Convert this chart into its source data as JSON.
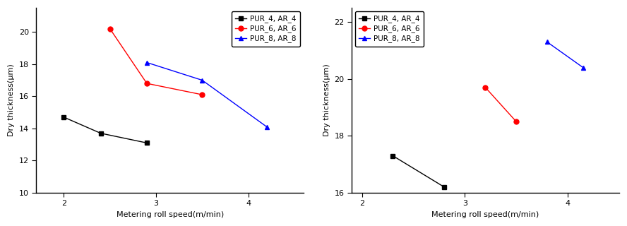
{
  "left": {
    "series": [
      {
        "label": "PUR_4, AR_4",
        "color": "black",
        "marker": "s",
        "x": [
          2.0,
          2.4,
          2.9
        ],
        "y": [
          14.7,
          13.7,
          13.1
        ]
      },
      {
        "label": "PUR_6, AR_6",
        "color": "red",
        "marker": "o",
        "x": [
          2.5,
          2.9,
          3.5
        ],
        "y": [
          20.2,
          16.8,
          16.1
        ]
      },
      {
        "label": "PUR_8, AR_8",
        "color": "blue",
        "marker": "^",
        "x": [
          2.9,
          3.5,
          4.2
        ],
        "y": [
          18.1,
          17.0,
          14.1
        ]
      }
    ],
    "xlabel": "Metering roll speed(m/min)",
    "ylabel": "Dry thickness(μm)",
    "xlim": [
      1.7,
      4.6
    ],
    "ylim": [
      10,
      21.5
    ],
    "yticks": [
      10,
      12,
      14,
      16,
      18,
      20
    ],
    "xticks": [
      2,
      3,
      4
    ]
  },
  "right": {
    "series": [
      {
        "label": "PUR_4, AR_4",
        "color": "black",
        "marker": "s",
        "x": [
          2.3,
          2.8
        ],
        "y": [
          17.3,
          16.2
        ]
      },
      {
        "label": "PUR_6, AR_6",
        "color": "red",
        "marker": "o",
        "x": [
          3.2,
          3.5
        ],
        "y": [
          19.7,
          18.5
        ]
      },
      {
        "label": "PUR_8, AR_8",
        "color": "blue",
        "marker": "^",
        "x": [
          3.8,
          4.15
        ],
        "y": [
          21.3,
          20.4
        ]
      }
    ],
    "xlabel": "Metering roll speed(m/min)",
    "ylabel": "Dry thickness(μm)",
    "xlim": [
      1.9,
      4.5
    ],
    "ylim": [
      16,
      22.5
    ],
    "yticks": [
      16,
      18,
      20,
      22
    ],
    "xticks": [
      2,
      3,
      4
    ]
  },
  "markersize": 5,
  "linewidth": 1.0,
  "fontsize_label": 8,
  "fontsize_tick": 8,
  "fontsize_legend": 7.5
}
